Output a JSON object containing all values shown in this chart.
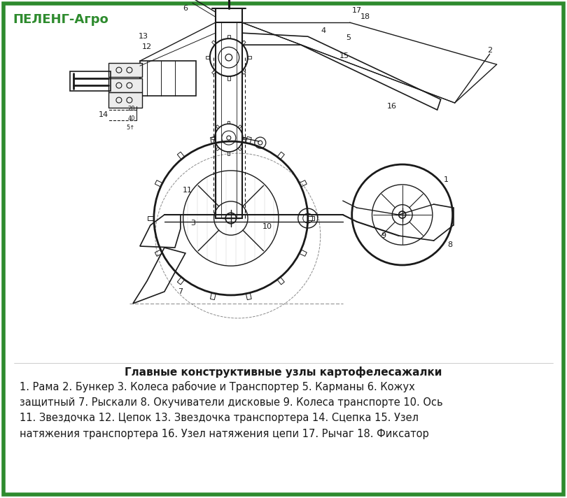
{
  "border_color": "#2e8b2e",
  "border_linewidth": 4,
  "background_color": "#ffffff",
  "title_text": "ПЕЛЕНГ-Агро",
  "title_color": "#2e8b2e",
  "title_fontsize": 13,
  "caption_title": "Главные конструктивные узлы картофелесажалки",
  "caption_body": "1. Рама 2. Бункер 3. Колеса рабочие и Транспортер 5. Карманы 6. Кожух\nзащитный 7. Рыскали 8. Окучиватели дисковые 9. Колеса транспорте 10. Ось\n11. Звездочка 12. Цепок 13. Звездочка транспортера 14. Сцепка 15. Узел\nнатяжения транспортера 16. Узел натяжения цепи 17. Рычаг 18. Фиксатор",
  "caption_title_fontsize": 11,
  "caption_body_fontsize": 10.5,
  "drawing_color": "#1a1a1a",
  "line_width": 1.0
}
